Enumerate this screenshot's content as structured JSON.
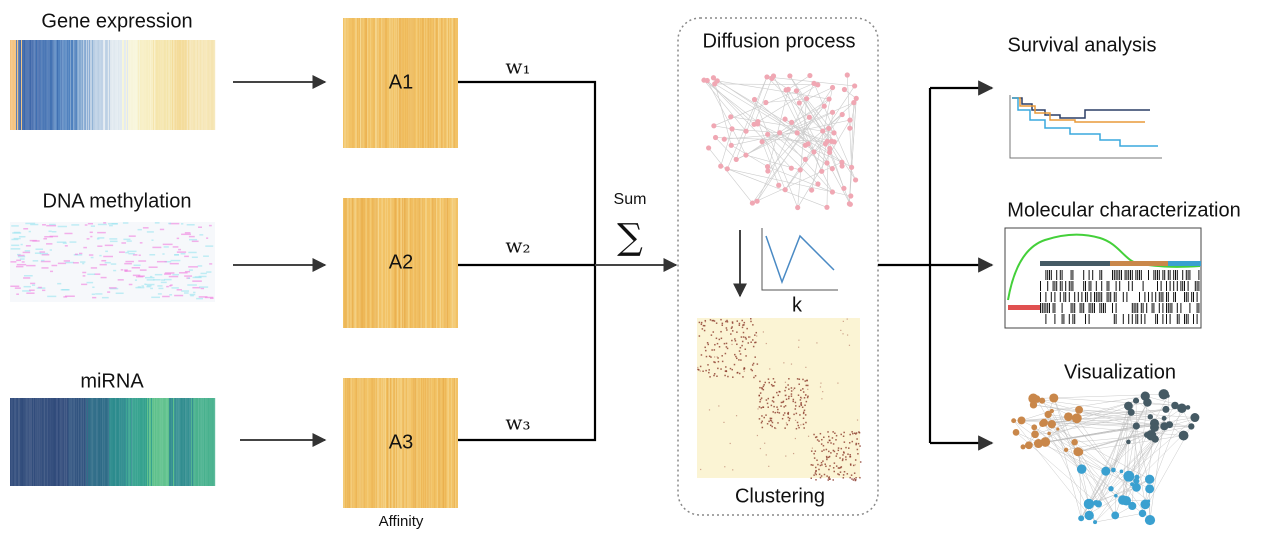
{
  "inputs": [
    {
      "label": "Gene expression"
    },
    {
      "label": "DNA methylation"
    },
    {
      "label": "miRNA"
    }
  ],
  "affinity": {
    "matrices": [
      "A1",
      "A2",
      "A3"
    ],
    "caption": "Affinity"
  },
  "weights": [
    "w₁",
    "w₂",
    "w₃"
  ],
  "sum": {
    "label": "Sum",
    "symbol": "∑"
  },
  "diffusion": {
    "title": "Diffusion process",
    "axis_label": "k",
    "caption": "Clustering"
  },
  "outputs": [
    {
      "label": "Survival analysis"
    },
    {
      "label": "Molecular characterization"
    },
    {
      "label": "Visualization"
    }
  ]
}
